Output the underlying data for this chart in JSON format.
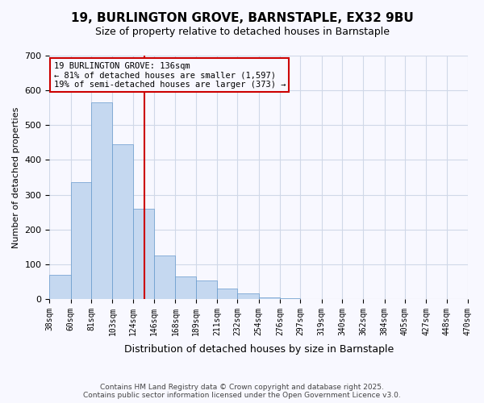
{
  "title_line1": "19, BURLINGTON GROVE, BARNSTAPLE, EX32 9BU",
  "title_line2": "Size of property relative to detached houses in Barnstaple",
  "xlabel": "Distribution of detached houses by size in Barnstaple",
  "ylabel": "Number of detached properties",
  "bar_values": [
    70,
    335,
    565,
    445,
    260,
    125,
    65,
    52,
    30,
    17,
    5,
    1,
    0,
    0,
    0,
    0,
    0,
    0,
    0
  ],
  "bin_edges": [
    38,
    60,
    81,
    103,
    124,
    146,
    168,
    189,
    211,
    232,
    254,
    276,
    297,
    319,
    340,
    362,
    384,
    405,
    427,
    448
  ],
  "tick_labels": [
    "38sqm",
    "60sqm",
    "81sqm",
    "103sqm",
    "124sqm",
    "146sqm",
    "168sqm",
    "189sqm",
    "211sqm",
    "232sqm",
    "254sqm",
    "276sqm",
    "297sqm",
    "319sqm",
    "340sqm",
    "362sqm",
    "384sqm",
    "405sqm",
    "427sqm",
    "448sqm",
    "470sqm"
  ],
  "tick_positions": [
    38,
    60,
    81,
    103,
    124,
    146,
    168,
    189,
    211,
    232,
    254,
    276,
    297,
    319,
    340,
    362,
    384,
    405,
    427,
    448,
    470
  ],
  "bar_color": "#c5d8f0",
  "bar_edge_color": "#6699cc",
  "vline_x": 136,
  "vline_color": "#cc0000",
  "annotation_box_edge": "#cc0000",
  "annotation_line1": "19 BURLINGTON GROVE: 136sqm",
  "annotation_line2": "← 81% of detached houses are smaller (1,597)",
  "annotation_line3": "19% of semi-detached houses are larger (373) →",
  "ylim": [
    0,
    700
  ],
  "yticks": [
    0,
    100,
    200,
    300,
    400,
    500,
    600,
    700
  ],
  "xlim_min": 38,
  "xlim_max": 470,
  "footer_line1": "Contains HM Land Registry data © Crown copyright and database right 2025.",
  "footer_line2": "Contains public sector information licensed under the Open Government Licence v3.0.",
  "background_color": "#f8f8ff",
  "grid_color": "#d0d8e8"
}
